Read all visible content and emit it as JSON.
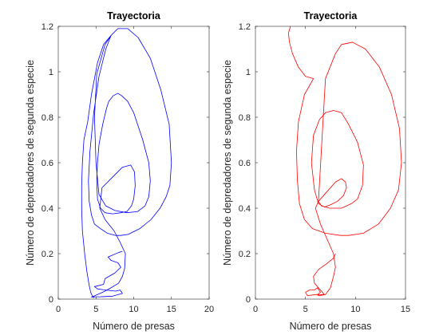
{
  "chart_data": [
    {
      "type": "line",
      "title": "Trayectoria",
      "xlabel": "Número de presas",
      "ylabel": "Número de depredadores de segunda especie",
      "xlim": [
        0,
        20
      ],
      "ylim": [
        0,
        1.2
      ],
      "xticks": [
        0,
        5,
        10,
        15,
        20
      ],
      "yticks": [
        0,
        0.2,
        0.4,
        0.6,
        0.8,
        1,
        1.2
      ],
      "xtick_labels": [
        "0",
        "5",
        "10",
        "15",
        "20"
      ],
      "ytick_labels": [
        "0",
        "0.2",
        "0.4",
        "0.6",
        "0.8",
        "1",
        "1.2"
      ],
      "grid": false,
      "legend": "none",
      "series": [
        {
          "color": "#0000ff",
          "x": [
            8.5,
            8.0,
            6.6,
            7.0,
            7.9,
            8.3,
            7.5,
            6.2,
            6.0,
            4.8,
            5.2,
            6.3,
            7.6,
            8.2,
            8.5,
            7.2,
            5.5,
            4.6,
            4.4,
            4.5,
            5.2,
            6.2,
            7.0,
            8.0,
            8.5,
            8.8,
            8.9,
            8.2,
            7.4,
            6.2,
            5.5,
            5.8,
            7.0,
            8.5,
            9.6,
            10.1,
            10.2,
            10.0,
            9.7,
            9.1,
            8.3,
            7.2,
            6.2,
            5.6,
            5.2,
            5.1,
            5.2,
            5.4,
            5.9,
            6.4,
            6.7,
            7.3,
            7.9,
            8.4,
            9.2,
            10.0,
            11.2,
            12.0,
            12.2,
            12.0,
            11.5,
            10.5,
            9.1,
            7.5,
            6.3,
            5.4,
            5.0,
            4.8,
            5.1,
            6.2,
            7.0,
            7.9,
            9.2,
            10.6,
            12.2,
            13.6,
            14.7,
            15.0,
            14.8,
            14.3,
            13.5,
            12.3,
            10.8,
            9.3,
            8.3,
            7.6,
            6.5,
            5.6,
            4.8,
            4.4,
            4.1,
            4.0,
            4.2,
            4.7,
            5.4,
            6.3,
            7.0,
            6.0,
            5.2,
            4.4,
            3.9,
            3.4,
            3.2,
            3.1,
            3.1,
            3.2,
            3.5,
            3.8,
            4.1,
            4.3,
            4.5,
            4.7
          ],
          "y": [
            0.21,
            0.205,
            0.185,
            0.17,
            0.16,
            0.14,
            0.115,
            0.09,
            0.065,
            0.055,
            0.045,
            0.04,
            0.035,
            0.04,
            0.025,
            0.013,
            0.01,
            0.01,
            0.008,
            0.01,
            0.02,
            0.035,
            0.05,
            0.07,
            0.1,
            0.135,
            0.2,
            0.25,
            0.3,
            0.35,
            0.4,
            0.49,
            0.53,
            0.58,
            0.59,
            0.56,
            0.5,
            0.44,
            0.41,
            0.385,
            0.38,
            0.375,
            0.38,
            0.4,
            0.44,
            0.52,
            0.6,
            0.68,
            0.77,
            0.84,
            0.87,
            0.895,
            0.905,
            0.895,
            0.87,
            0.82,
            0.7,
            0.6,
            0.52,
            0.45,
            0.41,
            0.385,
            0.38,
            0.39,
            0.41,
            0.46,
            0.6,
            0.8,
            0.99,
            1.12,
            1.16,
            1.19,
            1.19,
            1.15,
            1.06,
            0.92,
            0.77,
            0.6,
            0.5,
            0.45,
            0.4,
            0.35,
            0.31,
            0.285,
            0.28,
            0.28,
            0.29,
            0.31,
            0.33,
            0.37,
            0.43,
            0.52,
            0.65,
            0.82,
            0.98,
            1.1,
            1.16,
            1.12,
            1.04,
            0.9,
            0.78,
            0.7,
            0.6,
            0.5,
            0.4,
            0.3,
            0.2,
            0.12,
            0.06,
            0.03,
            0.015,
            0.005
          ]
        }
      ]
    },
    {
      "type": "line",
      "title": "Trayectoria",
      "xlabel": "Número de presas",
      "ylabel": "Número de depredadores de segunda especie",
      "xlim": [
        0,
        15
      ],
      "ylim": [
        0,
        1.2
      ],
      "xticks": [
        0,
        5,
        10,
        15
      ],
      "yticks": [
        0,
        0.2,
        0.4,
        0.6,
        0.8,
        1,
        1.2
      ],
      "xtick_labels": [
        "0",
        "5",
        "10",
        "15"
      ],
      "ytick_labels": [
        "0",
        "0.2",
        "0.4",
        "0.6",
        "0.8",
        "1",
        "1.2"
      ],
      "grid": false,
      "legend": "none",
      "series": [
        {
          "color": "#ff0000",
          "x": [
            8.0,
            7.8,
            7.1,
            6.3,
            5.8,
            5.9,
            6.5,
            6.9,
            6.0,
            5.2,
            5.0,
            5.4,
            5.9,
            6.2,
            6.5,
            6.2,
            6.3,
            7.0,
            7.5,
            7.8,
            8.0,
            7.8,
            7.2,
            6.5,
            6.0,
            6.3,
            7.1,
            8.0,
            8.6,
            9.0,
            9.1,
            8.8,
            8.2,
            7.5,
            6.9,
            6.3,
            5.9,
            5.6,
            5.8,
            6.4,
            7.0,
            7.8,
            8.6,
            9.3,
            10.2,
            10.8,
            10.7,
            10.2,
            9.6,
            8.6,
            7.4,
            6.6,
            6.3,
            7.0,
            8.0,
            8.6,
            9.7,
            11.0,
            12.4,
            13.6,
            14.4,
            14.6,
            14.3,
            13.5,
            12.3,
            10.8,
            9.3,
            8.5,
            7.0,
            5.7,
            4.9,
            4.4,
            4.2,
            4.1,
            4.3,
            4.9,
            5.8,
            5.0,
            4.3,
            3.7,
            3.4,
            3.3,
            3.5
          ],
          "y": [
            0.2,
            0.18,
            0.155,
            0.13,
            0.1,
            0.07,
            0.04,
            0.02,
            0.02,
            0.015,
            0.03,
            0.04,
            0.04,
            0.05,
            0.03,
            0.02,
            0.015,
            0.02,
            0.05,
            0.1,
            0.14,
            0.2,
            0.26,
            0.33,
            0.4,
            0.43,
            0.47,
            0.515,
            0.53,
            0.515,
            0.49,
            0.455,
            0.43,
            0.415,
            0.405,
            0.42,
            0.48,
            0.6,
            0.72,
            0.79,
            0.82,
            0.83,
            0.82,
            0.77,
            0.69,
            0.59,
            0.5,
            0.44,
            0.42,
            0.4,
            0.4,
            0.41,
            0.43,
            0.97,
            1.08,
            1.12,
            1.13,
            1.1,
            1.02,
            0.9,
            0.75,
            0.6,
            0.48,
            0.4,
            0.33,
            0.29,
            0.28,
            0.28,
            0.29,
            0.31,
            0.35,
            0.42,
            0.52,
            0.65,
            0.78,
            0.9,
            0.97,
            0.98,
            1.02,
            1.08,
            1.13,
            1.17,
            1.2
          ]
        }
      ]
    }
  ]
}
